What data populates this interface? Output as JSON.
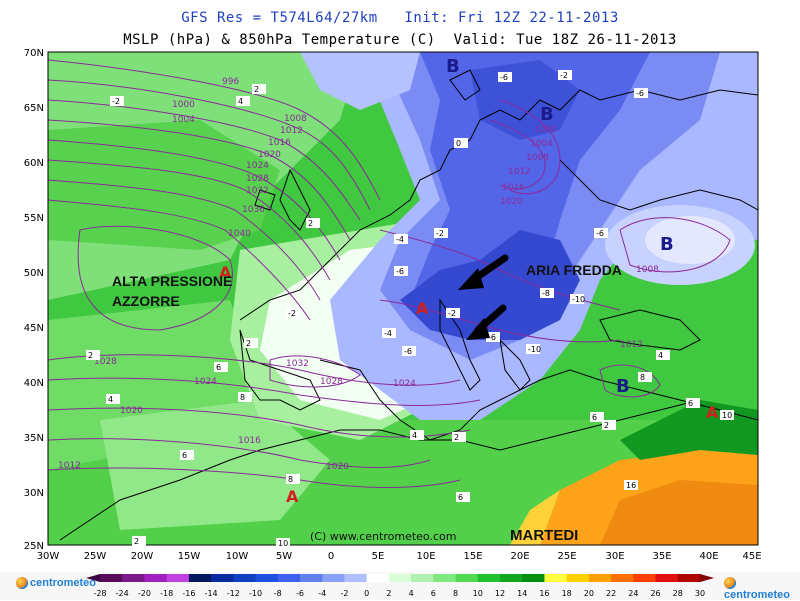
{
  "header": {
    "line1": "GFS Res = T574L64/27km   Init: Fri 12Z 22-11-2013",
    "line2": "MSLP (hPa) & 850hPa Temperature (C)  Valid: Tue 18Z 26-11-2013"
  },
  "map": {
    "lat_labels": [
      "70N",
      "65N",
      "60N",
      "55N",
      "50N",
      "45N",
      "40N",
      "35N",
      "30N",
      "25N"
    ],
    "lon_labels": [
      "30W",
      "25W",
      "20W",
      "15W",
      "10W",
      "5W",
      "0",
      "5E",
      "10E",
      "15E",
      "20E",
      "25E",
      "30E",
      "35E",
      "40E",
      "45E"
    ],
    "annotations": {
      "high_azores_line1": "ALTA PRESSIONE",
      "high_azores_line2": "AZZORRE",
      "cold_air": "ARIA FREDDA",
      "day": "MARTEDI",
      "credit": "(C) www.centrometeo.com"
    },
    "pressure_centers": [
      {
        "letter": "B",
        "type": "low"
      },
      {
        "letter": "B",
        "type": "low"
      },
      {
        "letter": "B",
        "type": "low"
      },
      {
        "letter": "B",
        "type": "low"
      },
      {
        "letter": "A",
        "type": "high"
      },
      {
        "letter": "A",
        "type": "high"
      },
      {
        "letter": "A",
        "type": "high"
      },
      {
        "letter": "A",
        "type": "high"
      }
    ],
    "isobar_labels": [
      "996",
      "1000",
      "1004",
      "1008",
      "1012",
      "1016",
      "1020",
      "1024",
      "1028",
      "1032",
      "1036",
      "1040",
      "1000",
      "1004",
      "1008",
      "1012",
      "1016",
      "1020",
      "1008",
      "1012",
      "1028",
      "1024",
      "1020",
      "1016",
      "1012",
      "1032",
      "1028",
      "1024",
      "1020"
    ],
    "temp_labels": [
      "2",
      "-2",
      "-6",
      "4",
      "0",
      "-2",
      "-6",
      "2",
      "-4",
      "-2",
      "-6",
      "-8",
      "-10",
      "-6",
      "-4",
      "-6",
      "-2",
      "2",
      "-2",
      "-6",
      "-10",
      "2",
      "4",
      "6",
      "8",
      "4",
      "2",
      "6",
      "8",
      "10",
      "6",
      "4",
      "2",
      "8",
      "6",
      "10",
      "16",
      "6",
      "2"
    ]
  },
  "colorbar": {
    "values": [
      "-28",
      "-24",
      "-20",
      "-18",
      "-16",
      "-14",
      "-12",
      "-10",
      "-8",
      "-6",
      "-4",
      "-2",
      "0",
      "2",
      "4",
      "6",
      "8",
      "10",
      "12",
      "14",
      "16",
      "18",
      "20",
      "22",
      "24",
      "26",
      "28",
      "30"
    ],
    "colors": [
      "#5a0a5a",
      "#7a1a8a",
      "#a020c0",
      "#c040e0",
      "#001860",
      "#0a2aa0",
      "#1040c0",
      "#2050e0",
      "#4060f0",
      "#6080f0",
      "#8aa0f8",
      "#b0c0ff",
      "#ffffff",
      "#d8ffd8",
      "#b0f0b0",
      "#80e880",
      "#50d850",
      "#20c030",
      "#10a820",
      "#009010",
      "#ffff40",
      "#ffd000",
      "#ffa000",
      "#ff7000",
      "#ff4000",
      "#e01010",
      "#b00000"
    ],
    "logo_text": "centrometeo"
  }
}
